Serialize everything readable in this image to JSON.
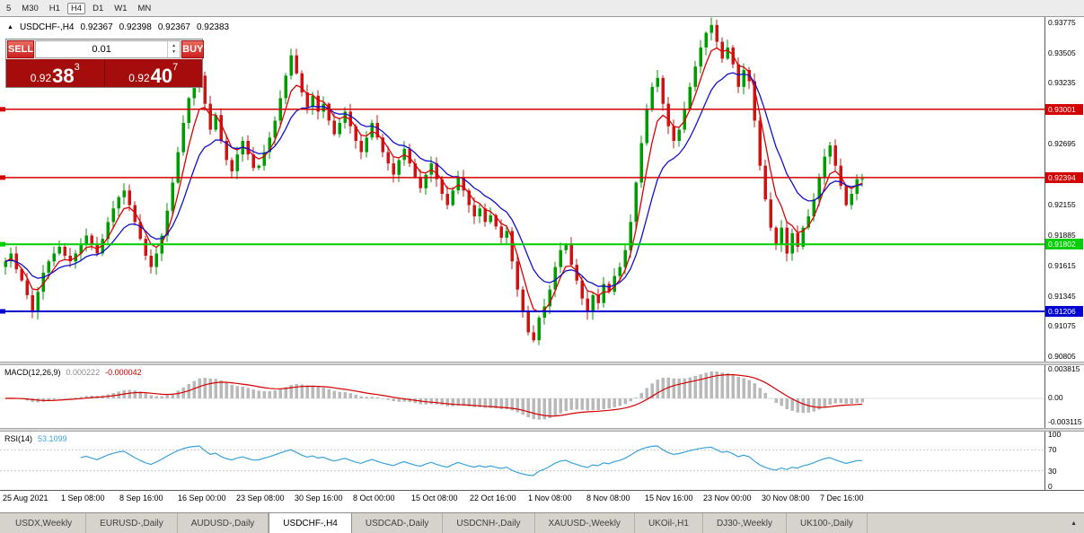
{
  "icons": {
    "panel_toggle": "▲",
    "spin_up": "▲",
    "spin_down": "▼",
    "tab_scroll": "▲"
  },
  "toolbar": {
    "timeframes": [
      "5",
      "M30",
      "H1",
      "H4",
      "D1",
      "W1",
      "MN"
    ],
    "active": "H4"
  },
  "one_click": {
    "sell_label": "SELL",
    "buy_label": "BUY",
    "lot": "0.01",
    "sell": {
      "figure": "0.92",
      "pips": "38",
      "pipette": "3"
    },
    "buy": {
      "figure": "0.92",
      "pips": "40",
      "pipette": "7"
    }
  },
  "chart": {
    "title": "USDCHF-,H4",
    "ohlc": {
      "open": "0.92367",
      "high": "0.92398",
      "low": "0.92367",
      "close": "0.92383"
    },
    "first_open": 0.916,
    "price_axis": {
      "top": 0.9382,
      "bottom": 0.9076,
      "labels": [
        0.93775,
        0.93505,
        0.93235,
        0.92695,
        0.92155,
        0.91885,
        0.91615,
        0.91345,
        0.91075,
        0.90805
      ]
    },
    "hlines": [
      {
        "price": 0.93001,
        "label": "0.93001",
        "color": "#d40000",
        "width": 1.5
      },
      {
        "price": 0.92394,
        "label": "0.92394",
        "color": "#d40000",
        "width": 1.5
      },
      {
        "price": 0.91802,
        "label": "0.91802",
        "color": "#00ce00",
        "width": 2
      },
      {
        "price": 0.91206,
        "label": "0.91206",
        "color": "#0000d0",
        "width": 2
      }
    ],
    "colors": {
      "up": "#009b00",
      "down": "#cc1414",
      "ma_fast": "#dd0000",
      "ma_slow": "#1111cc"
    },
    "closes": [
      0.9165,
      0.9172,
      0.9158,
      0.9148,
      0.9135,
      0.912,
      0.9138,
      0.9155,
      0.9165,
      0.9172,
      0.9178,
      0.917,
      0.9165,
      0.9172,
      0.918,
      0.9188,
      0.918,
      0.9172,
      0.9185,
      0.92,
      0.9212,
      0.9222,
      0.9228,
      0.9215,
      0.92,
      0.9185,
      0.917,
      0.916,
      0.9172,
      0.9188,
      0.921,
      0.9235,
      0.9262,
      0.9288,
      0.931,
      0.9322,
      0.933,
      0.9305,
      0.9282,
      0.9295,
      0.9272,
      0.9255,
      0.9245,
      0.926,
      0.9272,
      0.926,
      0.9248,
      0.925,
      0.9262,
      0.9275,
      0.929,
      0.931,
      0.933,
      0.9348,
      0.9332,
      0.9315,
      0.9302,
      0.9312,
      0.9298,
      0.9305,
      0.929,
      0.9278,
      0.9288,
      0.9298,
      0.9285,
      0.9272,
      0.9262,
      0.9275,
      0.9288,
      0.9275,
      0.9262,
      0.9252,
      0.9242,
      0.9255,
      0.9265,
      0.9252,
      0.924,
      0.923,
      0.9242,
      0.9252,
      0.9238,
      0.9225,
      0.9215,
      0.9228,
      0.924,
      0.9228,
      0.9215,
      0.9205,
      0.9212,
      0.92,
      0.9206,
      0.9196,
      0.9186,
      0.9192,
      0.9165,
      0.914,
      0.912,
      0.9102,
      0.9095,
      0.9115,
      0.9125,
      0.914,
      0.916,
      0.9175,
      0.918,
      0.9162,
      0.9148,
      0.9132,
      0.912,
      0.9135,
      0.9128,
      0.9145,
      0.9138,
      0.9152,
      0.916,
      0.9175,
      0.92,
      0.9235,
      0.927,
      0.93,
      0.932,
      0.9328,
      0.9305,
      0.9285,
      0.9272,
      0.9282,
      0.93,
      0.932,
      0.9338,
      0.9355,
      0.9368,
      0.9375,
      0.936,
      0.9345,
      0.9355,
      0.934,
      0.932,
      0.9335,
      0.9325,
      0.929,
      0.925,
      0.922,
      0.9195,
      0.918,
      0.9195,
      0.9172,
      0.919,
      0.9178,
      0.9195,
      0.9205,
      0.922,
      0.924,
      0.9258,
      0.9268,
      0.925,
      0.9232,
      0.9215,
      0.9225,
      0.9238,
      0.92383
    ]
  },
  "macd": {
    "name": "MACD(12,26,9)",
    "main_value": "0.000222",
    "signal_value": "-0.000042",
    "axis_top": "0.003815",
    "axis_zero": "0.00",
    "axis_bottom": "-0.003115",
    "histogram_color": "#b9b9b9",
    "signal_color": "#d40000"
  },
  "rsi": {
    "name": "RSI(14)",
    "value": "53.1099",
    "axis": [
      100,
      70,
      30,
      0
    ],
    "levels": [
      70,
      30
    ],
    "line_color": "#39a2dc"
  },
  "time_axis": {
    "labels": [
      "25 Aug 2021",
      "1 Sep 08:00",
      "8 Sep 16:00",
      "16 Sep 00:00",
      "23 Sep 08:00",
      "30 Sep 16:00",
      "8 Oct 00:00",
      "15 Oct 08:00",
      "22 Oct 16:00",
      "1 Nov 08:00",
      "8 Nov 08:00",
      "15 Nov 16:00",
      "23 Nov 00:00",
      "30 Nov 08:00",
      "7 Dec 16:00"
    ]
  },
  "tabs": {
    "items": [
      "USDX,Weekly",
      "EURUSD-,Daily",
      "AUDUSD-,Daily",
      "USDCHF-,H4",
      "USDCAD-,Daily",
      "USDCNH-,Daily",
      "XAUUSD-,Weekly",
      "UKOil-,H1",
      "DJ30-,Weekly",
      "UK100-,Daily"
    ],
    "active_index": 3
  }
}
